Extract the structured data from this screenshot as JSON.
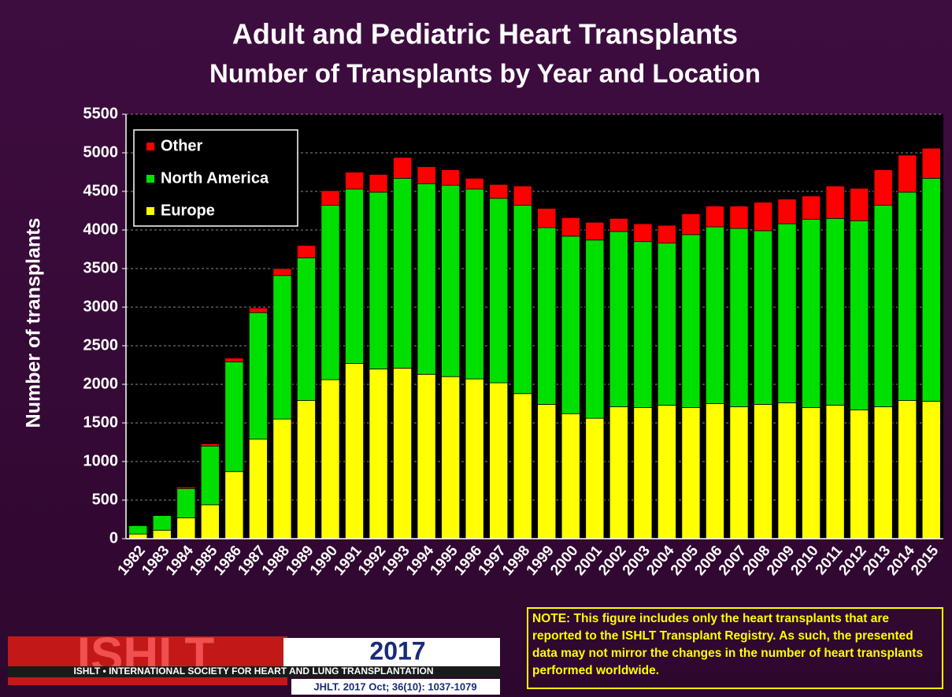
{
  "chart_data": {
    "type": "stacked_bar",
    "title": "Adult and Pediatric Heart Transplants",
    "subtitle": "Number of Transplants by Year and Location",
    "y_label": "Number of transplants",
    "categories": [
      "1982",
      "1983",
      "1984",
      "1985",
      "1986",
      "1987",
      "1988",
      "1989",
      "1990",
      "1991",
      "1992",
      "1993",
      "1994",
      "1995",
      "1996",
      "1997",
      "1998",
      "1999",
      "2000",
      "2001",
      "2002",
      "2003",
      "2004",
      "2005",
      "2006",
      "2007",
      "2008",
      "2009",
      "2010",
      "2011",
      "2012",
      "2013",
      "2014",
      "2015"
    ],
    "series": [
      {
        "name": "Europe",
        "color": "#ffff00",
        "values": [
          60,
          110,
          270,
          440,
          870,
          1290,
          1550,
          1790,
          2060,
          2270,
          2200,
          2210,
          2130,
          2100,
          2070,
          2020,
          1880,
          1740,
          1620,
          1560,
          1710,
          1700,
          1730,
          1700,
          1750,
          1710,
          1740,
          1760,
          1700,
          1730,
          1670,
          1710,
          1790,
          1780
        ]
      },
      {
        "name": "North America",
        "color": "#00e000",
        "values": [
          110,
          190,
          380,
          760,
          1420,
          1640,
          1860,
          1850,
          2260,
          2260,
          2290,
          2460,
          2470,
          2480,
          2460,
          2390,
          2440,
          2290,
          2300,
          2310,
          2270,
          2150,
          2100,
          2240,
          2290,
          2310,
          2250,
          2320,
          2440,
          2420,
          2450,
          2610,
          2700,
          2890
        ]
      },
      {
        "name": "Other",
        "color": "#ff0000",
        "values": [
          5,
          5,
          20,
          30,
          50,
          60,
          90,
          160,
          190,
          220,
          230,
          270,
          220,
          200,
          140,
          180,
          250,
          250,
          240,
          230,
          170,
          230,
          230,
          270,
          270,
          290,
          370,
          320,
          300,
          420,
          420,
          460,
          480,
          390
        ]
      }
    ],
    "ylim": [
      0,
      5500
    ],
    "yticks": [
      0,
      500,
      1000,
      1500,
      2000,
      2500,
      3000,
      3500,
      4000,
      4500,
      5000,
      5500
    ],
    "grid": true,
    "legend": "upper left"
  },
  "note": "NOTE: This figure includes only the heart transplants that are reported to the ISHLT Transplant Registry. As such, the presented data may not mirror the changes in the number of heart transplants performed worldwide.",
  "footer": {
    "logo": "ISHLT",
    "year": "2017",
    "society": "ISHLT • INTERNATIONAL SOCIETY FOR HEART AND LUNG TRANSPLANTATION",
    "citation": "JHLT. 2017 Oct; 36(10): 1037-1079"
  }
}
